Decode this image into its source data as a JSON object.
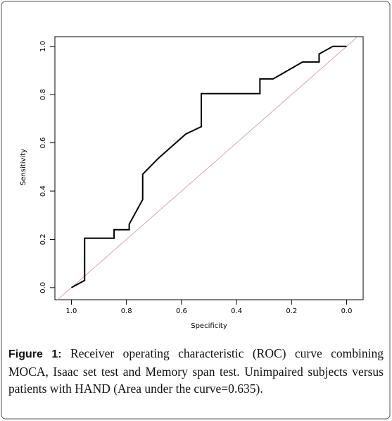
{
  "chart_data": {
    "type": "line",
    "x_label": "Specificity",
    "y_label": "Sensitivity",
    "xlim": [
      1.06,
      -0.06
    ],
    "ylim": [
      -0.05,
      1.04
    ],
    "xticks": [
      {
        "value": 1,
        "label": "1.0"
      },
      0.8,
      0.6,
      0.4,
      0.2,
      {
        "value": 0,
        "label": "0.0"
      }
    ],
    "yticks": [
      {
        "value": 0,
        "label": "0.0"
      },
      0.2,
      0.4,
      0.6,
      0.8,
      {
        "value": 1,
        "label": "1.0"
      }
    ],
    "series": [
      {
        "color": "#000000",
        "x": [
          1.0,
          0.952,
          0.952,
          0.845,
          0.845,
          0.79,
          0.79,
          0.741,
          0.741,
          0.685,
          0.584,
          0.528,
          0.528,
          0.315,
          0.315,
          0.267,
          0.16,
          0.1,
          0.1,
          0.05,
          0.0
        ],
        "values": [
          0.0,
          0.03,
          0.205,
          0.205,
          0.24,
          0.24,
          0.263,
          0.365,
          0.47,
          0.535,
          0.637,
          0.667,
          0.804,
          0.804,
          0.865,
          0.865,
          0.935,
          0.935,
          0.968,
          1.0,
          1.0
        ]
      }
    ],
    "reference_line": {
      "x": [
        1,
        0
      ],
      "values": [
        0,
        1
      ],
      "color": "#d8a8a8"
    }
  },
  "caption": {
    "label": "Figure 1:",
    "text": "Receiver operating characteristic (ROC) curve combining MOCA, Isaac set test and Memory span test. Unimpaired subjects versus patients with HAND (Area under the curve=0.635)."
  }
}
